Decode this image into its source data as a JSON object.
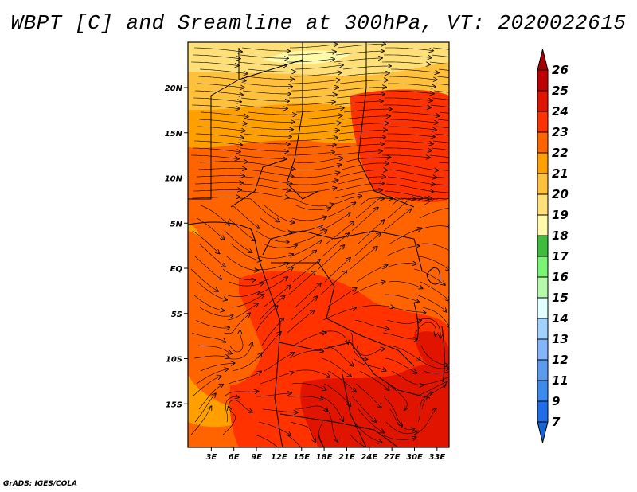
{
  "title": "WBPT [C] and Sreamline at 300hPa, VT: 2020022615",
  "footer": "GrADS: IGES/COLA",
  "map": {
    "lat_labels": [
      "20N",
      "15N",
      "10N",
      "5N",
      "EQ",
      "5S",
      "10S",
      "15S"
    ],
    "lat_values": [
      20,
      15,
      10,
      5,
      0,
      -5,
      -10,
      -15
    ],
    "lon_labels": [
      "3E",
      "6E",
      "9E",
      "12E",
      "15E",
      "18E",
      "21E",
      "24E",
      "27E",
      "30E",
      "33E"
    ],
    "lon_values": [
      3,
      6,
      9,
      12,
      15,
      18,
      21,
      24,
      27,
      30,
      33
    ]
  },
  "colorbar": {
    "labels": [
      "26",
      "25",
      "24",
      "23",
      "22",
      "21",
      "20",
      "19",
      "18",
      "17",
      "16",
      "15",
      "14",
      "13",
      "12",
      "11",
      "9",
      "7"
    ],
    "top_arrow_color": "#a50000",
    "bottom_arrow_color": "#1464d2",
    "colors": [
      "#c00000",
      "#e11400",
      "#ff3200",
      "#ff6400",
      "#ffa000",
      "#ffc03c",
      "#ffe078",
      "#fffaaa",
      "#3cbe3c",
      "#78f573",
      "#b4faaa",
      "#e1ffff",
      "#a0d2ff",
      "#82b4ff",
      "#5a9bf0",
      "#3c8cf0",
      "#1e6eeb"
    ]
  }
}
